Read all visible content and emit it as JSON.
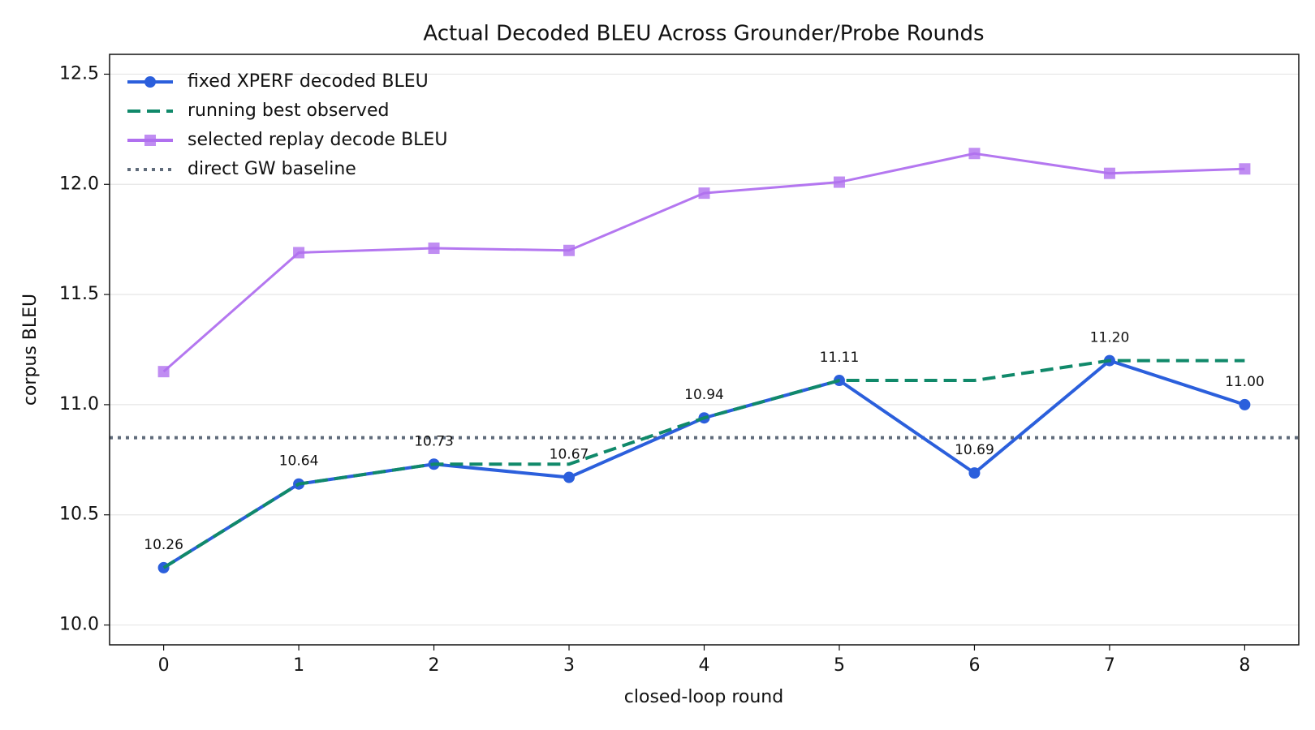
{
  "chart_data": {
    "type": "line",
    "title": "Actual Decoded BLEU Across Grounder/Probe Rounds",
    "xlabel": "closed-loop round",
    "ylabel": "corpus BLEU",
    "x": [
      0,
      1,
      2,
      3,
      4,
      5,
      6,
      7,
      8
    ],
    "xlim": [
      -0.4,
      8.4
    ],
    "xticks": [
      0,
      1,
      2,
      3,
      4,
      5,
      6,
      7,
      8
    ],
    "ylim": [
      9.91,
      12.59
    ],
    "yticks": [
      {
        "value": 10,
        "label": "10.0"
      },
      10.5,
      {
        "value": 11,
        "label": "11.0"
      },
      11.5,
      {
        "value": 12,
        "label": "12.0"
      },
      12.5
    ],
    "grid": true,
    "legend": "upper left",
    "series": [
      {
        "name": "fixed XPERF decoded BLEU",
        "color": "#2b5fdc",
        "style": "solid",
        "marker": "circle",
        "values": [
          10.26,
          10.64,
          10.73,
          10.67,
          10.94,
          11.11,
          10.69,
          11.2,
          11.0
        ],
        "value_labels": [
          "10.26",
          "10.64",
          "10.73",
          "10.67",
          "10.94",
          "11.11",
          "10.69",
          "11.20",
          "11.00"
        ]
      },
      {
        "name": "running best observed",
        "color": "#10896a",
        "style": "dashed",
        "marker": "none",
        "values": [
          10.26,
          10.64,
          10.73,
          10.73,
          10.94,
          11.11,
          11.11,
          11.2,
          11.2
        ]
      },
      {
        "name": "selected replay decode BLEU",
        "color": "#b070ef",
        "style": "solid",
        "marker": "square",
        "values": [
          11.15,
          11.69,
          11.71,
          11.7,
          11.96,
          12.01,
          12.14,
          12.05,
          12.07
        ]
      }
    ],
    "baseline": {
      "name": "direct GW baseline",
      "color": "#5f6b7a",
      "style": "dotted",
      "value": 10.85
    }
  }
}
